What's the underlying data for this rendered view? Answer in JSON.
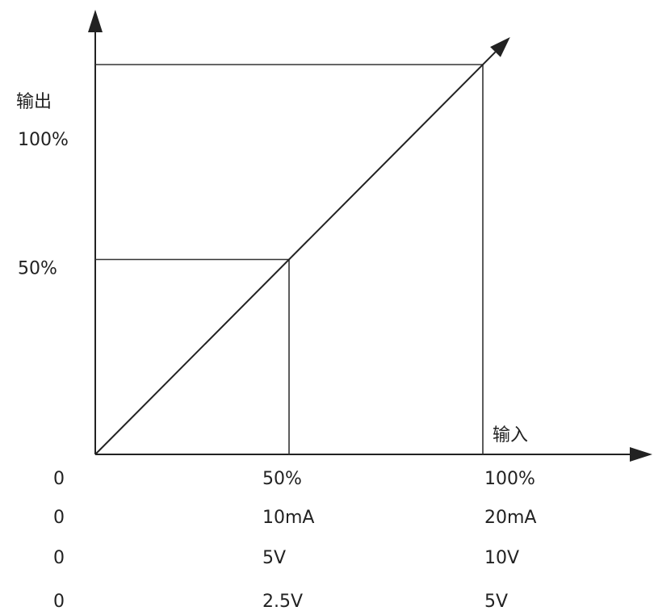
{
  "chart_data": {
    "type": "line",
    "title": "",
    "ylabel": "输出",
    "xlabel": "输入",
    "x_unit": "%",
    "y_unit": "%",
    "xlim": [
      0,
      100
    ],
    "ylim": [
      0,
      100
    ],
    "grid": false,
    "series": [
      {
        "values": [
          {
            "x": 0,
            "y": 0
          },
          {
            "x": 50,
            "y": 50
          },
          {
            "x": 100,
            "y": 100
          }
        ]
      }
    ],
    "guides": [
      {
        "x": 50,
        "y": 50
      },
      {
        "x": 100,
        "y": 100
      }
    ],
    "y_ticks": [
      {
        "value": 50,
        "label": "50%"
      },
      {
        "value": 100,
        "label": "100%"
      }
    ],
    "x_tick_rows": [
      {
        "labels": [
          "0",
          "50%",
          "100%"
        ]
      },
      {
        "labels": [
          "0",
          "10mA",
          "20mA"
        ]
      },
      {
        "labels": [
          "0",
          "5V",
          "10V"
        ]
      },
      {
        "labels": [
          "0",
          "2.5V",
          "5V"
        ]
      }
    ],
    "x_tick_values": [
      0,
      50,
      100
    ]
  }
}
